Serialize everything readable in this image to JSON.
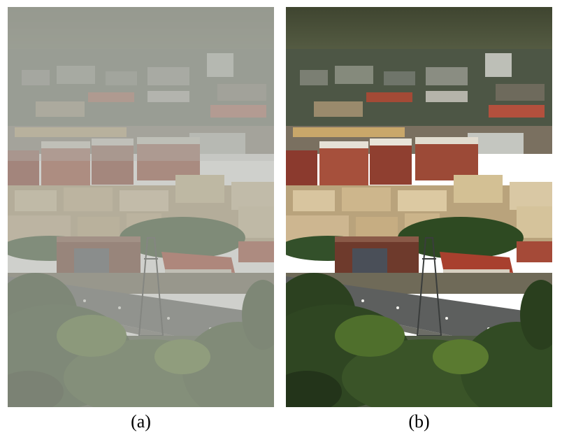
{
  "panels": [
    {
      "id": "a",
      "caption": "(a)"
    },
    {
      "id": "b",
      "caption": "(b)"
    }
  ],
  "colors": {
    "haze": "#a9aaa4",
    "sky_clear": "#4c5238",
    "foliage_dark": "#23341a",
    "foliage_light": "#5a7a30",
    "building_cream": "#d9c9a6",
    "building_red": "#8b3a2e",
    "roof_red": "#a8402e",
    "road": "#5d5f5e"
  }
}
